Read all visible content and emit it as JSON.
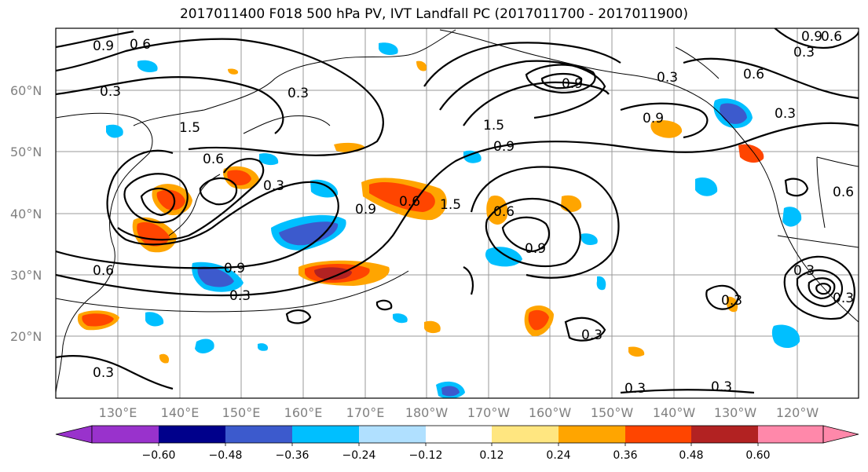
{
  "title": "2017011400 F018 500 hPa PV, IVT Landfall PC (2017011700 - 2017011900)",
  "lat_ticks": [
    "60°N",
    "50°N",
    "40°N",
    "30°N",
    "20°N"
  ],
  "lon_ticks": [
    "130°E",
    "140°E",
    "150°E",
    "160°E",
    "170°E",
    "180°W",
    "170°W",
    "160°W",
    "150°W",
    "140°W",
    "130°W",
    "120°W"
  ],
  "contour_labels": [
    "0.9",
    "0.6",
    "0.3",
    "0.3",
    "1.5",
    "0.6",
    "0.3",
    "0.9",
    "0.3",
    "0.9",
    "1.5",
    "0.9",
    "0.6",
    "1.5",
    "0.3",
    "0.6",
    "0.9",
    "0.6",
    "0.9",
    "0.3",
    "0.6",
    "0.3",
    "0.3",
    "0.3",
    "0.3",
    "0.9",
    "0.3",
    "0.6",
    "0.3",
    "0.3",
    "0.9",
    "0.6",
    "0.3"
  ],
  "colorbar": {
    "ticks": [
      "−0.60",
      "−0.48",
      "−0.36",
      "−0.24",
      "−0.12",
      "0.12",
      "0.24",
      "0.36",
      "0.48",
      "0.60"
    ],
    "colors": [
      "#9932cc",
      "#00008b",
      "#3c5acd",
      "#00bfff",
      "#b0e0ff",
      "#ffffff",
      "#ffe680",
      "#ffa500",
      "#ff4500",
      "#b22222",
      "#ff88aa"
    ]
  }
}
